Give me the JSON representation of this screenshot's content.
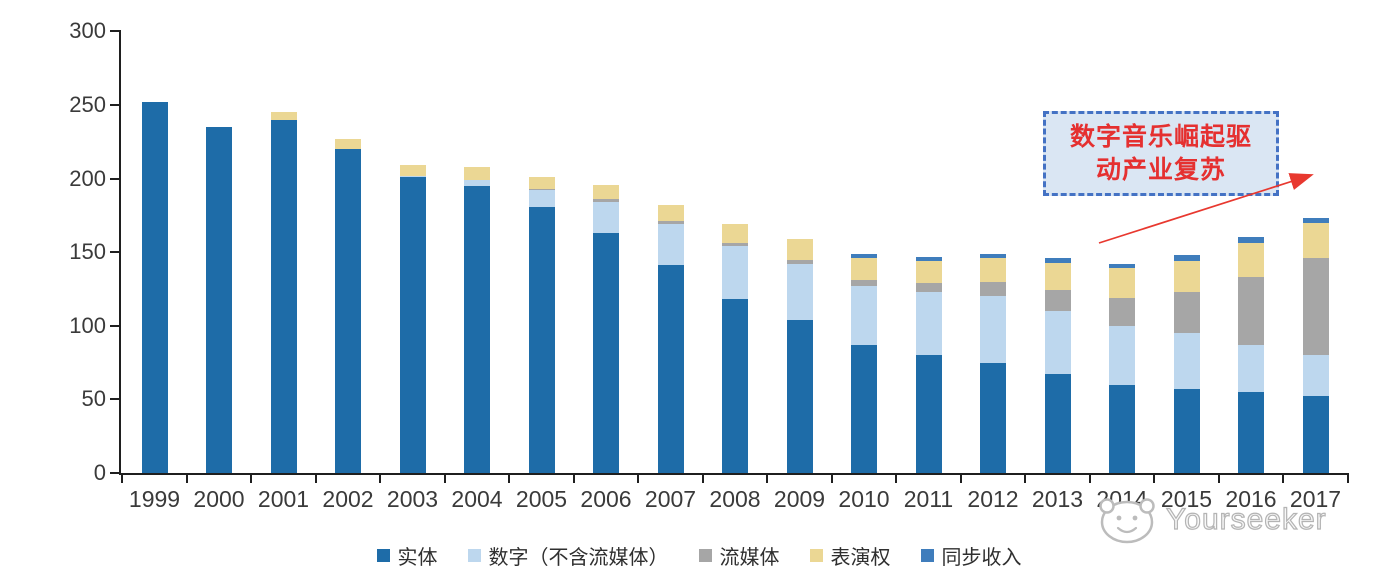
{
  "chart_data": {
    "type": "bar",
    "stacked": true,
    "title": "",
    "xlabel": "",
    "ylabel": "",
    "categories": [
      "1999",
      "2000",
      "2001",
      "2002",
      "2003",
      "2004",
      "2005",
      "2006",
      "2007",
      "2008",
      "2009",
      "2010",
      "2011",
      "2012",
      "2013",
      "2014",
      "2015",
      "2016",
      "2017"
    ],
    "series": [
      {
        "id": "physical",
        "name": "实体",
        "color": "#1E6CA8",
        "values": [
          252,
          235,
          240,
          220,
          201,
          195,
          181,
          163,
          141,
          118,
          104,
          87,
          80,
          75,
          67,
          60,
          57,
          55,
          52
        ]
      },
      {
        "id": "digital-excl-streaming",
        "name": "数字（不含流媒体）",
        "color": "#BDD7EE",
        "values": [
          0,
          0,
          0,
          0,
          1,
          4,
          11,
          21,
          28,
          36,
          38,
          40,
          43,
          45,
          43,
          40,
          38,
          32,
          28
        ]
      },
      {
        "id": "streaming",
        "name": "流媒体",
        "color": "#A6A6A6",
        "values": [
          0,
          0,
          0,
          0,
          0,
          0,
          1,
          2,
          2,
          2,
          3,
          4,
          6,
          10,
          14,
          19,
          28,
          46,
          66
        ]
      },
      {
        "id": "performance-rights",
        "name": "表演权",
        "color": "#EBD794",
        "values": [
          0,
          0,
          5,
          7,
          7,
          9,
          8,
          10,
          11,
          13,
          14,
          15,
          15,
          16,
          19,
          20,
          21,
          23,
          24
        ]
      },
      {
        "id": "sync-revenue",
        "name": "同步收入",
        "color": "#3F7DBC",
        "values": [
          0,
          0,
          0,
          0,
          0,
          0,
          0,
          0,
          0,
          0,
          0,
          3,
          3,
          3,
          3,
          3,
          4,
          4,
          3
        ]
      }
    ],
    "ylim": [
      0,
      300
    ],
    "yticks": [
      0,
      50,
      100,
      150,
      200,
      250,
      300
    ],
    "grid": false,
    "legend_position": "bottom"
  },
  "annotation": {
    "line1": "数字音乐崛起驱",
    "line2": "动产业复苏",
    "text_color": "#E53030",
    "border_color": "#4472C4",
    "fill_color": "#DAE6F3",
    "arrow_color": "#E8382F"
  },
  "watermark": {
    "text": "Yourseeker"
  }
}
